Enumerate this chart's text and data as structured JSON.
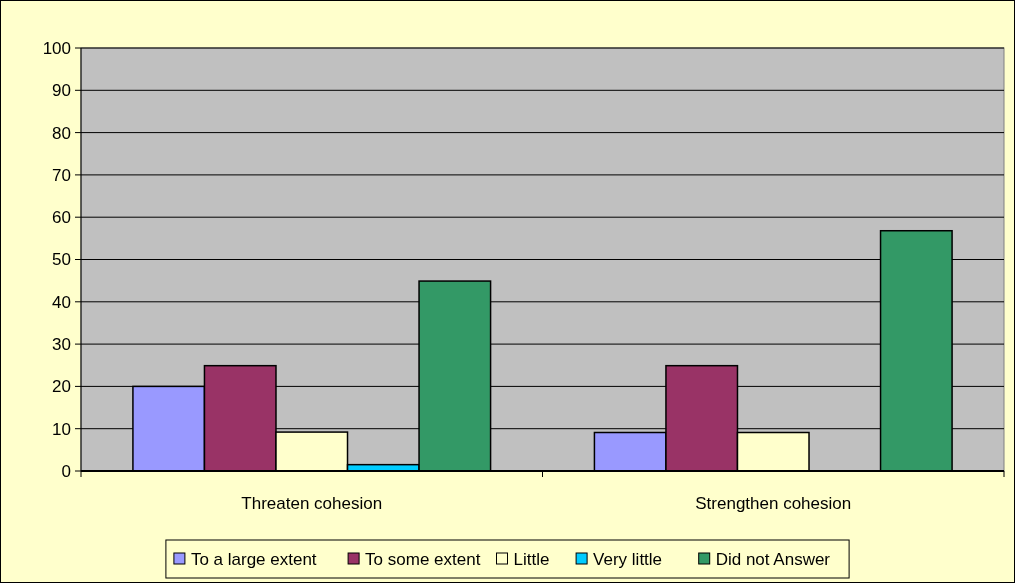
{
  "chart_data": {
    "type": "bar",
    "categories": [
      "Threaten cohesion",
      "Strengthen cohesion"
    ],
    "series": [
      {
        "name": "To a large extent",
        "color": "#9999ff",
        "values": [
          20,
          9.1
        ]
      },
      {
        "name": "To some extent",
        "color": "#993366",
        "values": [
          24.9,
          24.9
        ]
      },
      {
        "name": "Little",
        "color": "#ffffcc",
        "values": [
          9.2,
          9.1
        ]
      },
      {
        "name": "Very little",
        "color": "#00ccff",
        "values": [
          1.5,
          0
        ]
      },
      {
        "name": "Did not Answer",
        "color": "#339966",
        "values": [
          44.9,
          56.8
        ]
      }
    ],
    "ylim": [
      0,
      100
    ],
    "yticks": [
      0,
      10,
      20,
      30,
      40,
      50,
      60,
      70,
      80,
      90,
      100
    ],
    "grid": "y",
    "legend": "bottom"
  }
}
